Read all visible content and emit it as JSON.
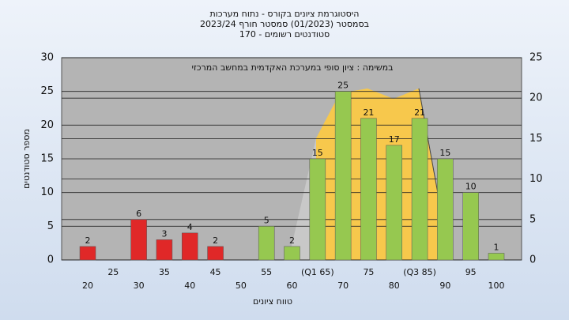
{
  "chart_data": {
    "type": "bar",
    "title": [
      "היסטוגרמת ציונים בקורס - נתוח מערכות",
      "בסמסטר  (01/2023)  סמסטר חורף 2023/24",
      "סטודנטים רשומים - 170"
    ],
    "subtitle": "במשימה : ציון סופי במערכת האקדמית במחשב המרכזי",
    "x_label": "טווח ציונים",
    "y_label": "מספר סטודנטים",
    "categories": [
      "20",
      "25",
      "30",
      "35",
      "40",
      "45",
      "50",
      "55",
      "60",
      "(Q1 65)",
      "70",
      "75",
      "80",
      "(Q3 85)",
      "90",
      "95",
      "100"
    ],
    "values": [
      2,
      null,
      6,
      3,
      4,
      2,
      null,
      5,
      2,
      15,
      25,
      21,
      17,
      21,
      15,
      10,
      1
    ],
    "colors": [
      "#e02828",
      null,
      "#e02828",
      "#e02828",
      "#e02828",
      "#e02828",
      null,
      "#96c850",
      "#96c850",
      "#96c850",
      "#96c850",
      "#96c850",
      "#96c850",
      "#96c850",
      "#96c850",
      "#96c850",
      "#96c850"
    ],
    "ylim": [
      0,
      30
    ],
    "yticks": [
      0,
      5,
      10,
      15,
      20,
      25,
      30
    ],
    "y2lim": [
      0,
      25
    ],
    "y2ticks": [
      0,
      5,
      10,
      15,
      20,
      25
    ],
    "grid": true
  }
}
